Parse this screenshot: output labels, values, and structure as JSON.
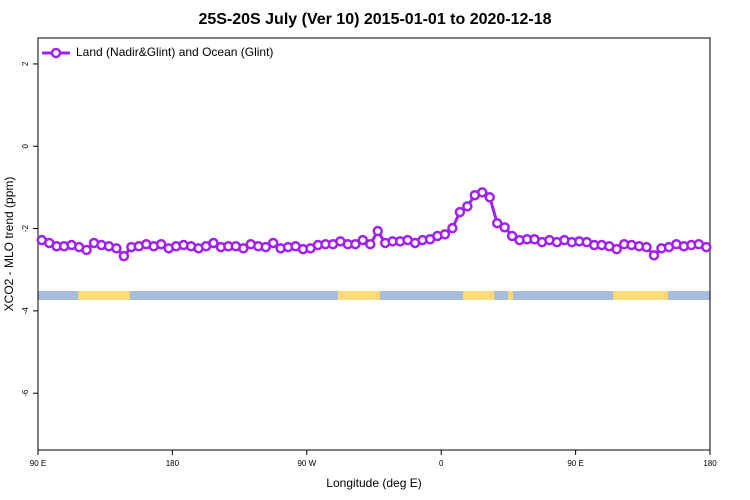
{
  "chart_data": {
    "type": "line",
    "title": "25S-20S July (Ver 10)   2015-01-01 to 2020-12-18",
    "xlabel": "Longitude (deg E)",
    "ylabel": "XCO2 - MLO trend (ppm)",
    "x": [
      92.5,
      97.5,
      102.5,
      107.5,
      112.5,
      117.5,
      122.5,
      127.5,
      132.5,
      137.5,
      142.5,
      147.5,
      152.5,
      157.5,
      162.5,
      167.5,
      172.5,
      177.5,
      182.5,
      187.5,
      192.5,
      197.5,
      202.5,
      207.5,
      212.5,
      217.5,
      222.5,
      227.5,
      232.5,
      237.5,
      242.5,
      247.5,
      252.5,
      257.5,
      262.5,
      267.5,
      272.5,
      277.5,
      282.5,
      287.5,
      292.5,
      297.5,
      302.5,
      307.5,
      312.5,
      317.5,
      322.5,
      327.5,
      332.5,
      337.5,
      342.5,
      347.5,
      352.5,
      357.5,
      362.5,
      367.5,
      372.5,
      377.5,
      382.5,
      387.5,
      392.5,
      397.5,
      402.5,
      407.5,
      412.5,
      417.5,
      422.5,
      427.5,
      432.5,
      437.5,
      442.5,
      447.5,
      452.5,
      457.5,
      462.5,
      467.5,
      472.5,
      477.5,
      482.5,
      487.5,
      492.5,
      497.5,
      502.5,
      507.5,
      512.5,
      517.5,
      522.5,
      527.5,
      532.5,
      537.5
    ],
    "series": [
      {
        "name": "Land (Nadir&Glint) and Ocean (Glint)",
        "color": "#a020f0",
        "values": [
          -2.28,
          -2.35,
          -2.43,
          -2.43,
          -2.4,
          -2.45,
          -2.52,
          -2.35,
          -2.4,
          -2.43,
          -2.48,
          -2.67,
          -2.45,
          -2.43,
          -2.38,
          -2.43,
          -2.38,
          -2.48,
          -2.43,
          -2.4,
          -2.43,
          -2.48,
          -2.43,
          -2.35,
          -2.45,
          -2.43,
          -2.43,
          -2.48,
          -2.38,
          -2.43,
          -2.45,
          -2.35,
          -2.48,
          -2.45,
          -2.43,
          -2.5,
          -2.48,
          -2.4,
          -2.38,
          -2.38,
          -2.31,
          -2.38,
          -2.38,
          -2.28,
          -2.38,
          -2.06,
          -2.35,
          -2.31,
          -2.31,
          -2.28,
          -2.35,
          -2.28,
          -2.26,
          -2.18,
          -2.14,
          -1.99,
          -1.6,
          -1.46,
          -1.19,
          -1.12,
          -1.24,
          -1.87,
          -1.97,
          -2.18,
          -2.28,
          -2.26,
          -2.26,
          -2.33,
          -2.28,
          -2.33,
          -2.28,
          -2.33,
          -2.31,
          -2.33,
          -2.4,
          -2.4,
          -2.43,
          -2.5,
          -2.38,
          -2.4,
          -2.43,
          -2.45,
          -2.65,
          -2.48,
          -2.45,
          -2.38,
          -2.43,
          -2.4,
          -2.38,
          -2.45
        ]
      }
    ],
    "xlim": [
      90,
      540
    ],
    "ylim": [
      -7.38,
      2.63
    ],
    "xticks": [
      {
        "value": 90,
        "label": "90 E"
      },
      180,
      {
        "value": 270,
        "label": "90 W"
      },
      {
        "value": 360,
        "label": "0"
      },
      {
        "value": 450,
        "label": "90 E"
      },
      {
        "value": 540,
        "label": "180"
      }
    ],
    "yticks": [
      -6,
      -4,
      -2,
      0,
      2
    ],
    "legend": "top-left"
  }
}
